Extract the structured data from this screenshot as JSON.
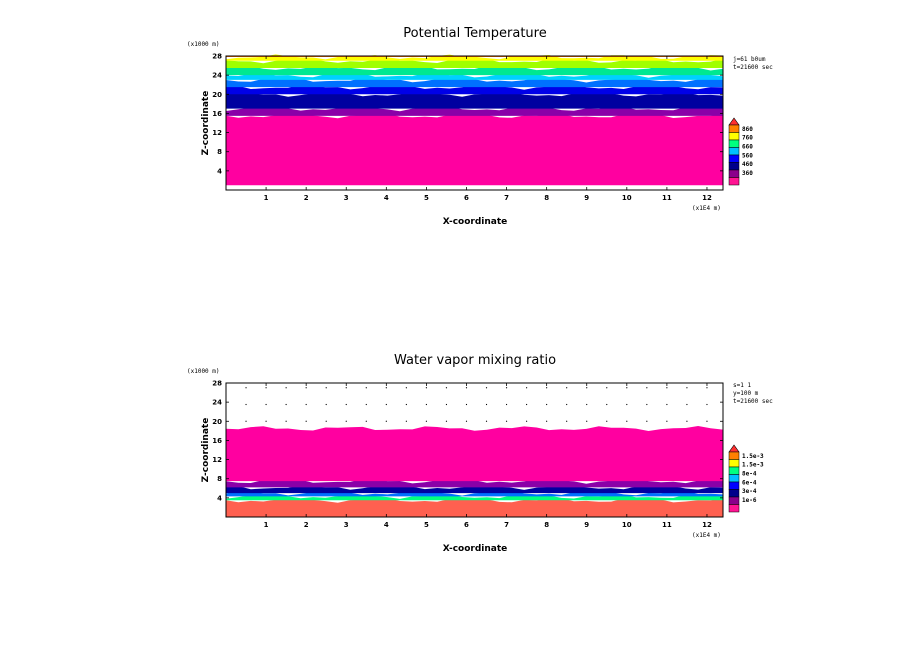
{
  "chart_data": [
    {
      "type": "heatmap",
      "title": "Potential Temperature",
      "xlabel": "X-coordinate",
      "ylabel": "Z-coordinate",
      "x_unit": "(x1E4 m)",
      "y_unit": "(x1000 m)",
      "xlim": [
        0,
        12.4
      ],
      "ylim": [
        0,
        28
      ],
      "x_ticks": [
        "1",
        "2",
        "3",
        "4",
        "5",
        "6",
        "7",
        "8",
        "9",
        "10",
        "11",
        "12"
      ],
      "y_ticks": [
        "4",
        "8",
        "12",
        "16",
        "20",
        "24",
        "28"
      ],
      "annotations": [
        "j=61 b0um",
        "t=21600 sec"
      ],
      "colorbar": {
        "labels": [
          "860",
          "760",
          "660",
          "560",
          "460",
          "360"
        ],
        "colors": [
          "#ff1493",
          "#8b008b",
          "#00008b",
          "#0000ff",
          "#00bfff",
          "#00ff80",
          "#ffff00",
          "#ff8000",
          "#ff3030"
        ],
        "extend": "max"
      },
      "layers": [
        {
          "z_bottom": 1.0,
          "z_top": 15.5,
          "color": "#ff00a0"
        },
        {
          "z_bottom": 15.5,
          "z_top": 17.0,
          "color": "#8a00a8"
        },
        {
          "z_bottom": 17.0,
          "z_top": 20.0,
          "color": "#0000a0"
        },
        {
          "z_bottom": 20.0,
          "z_top": 21.5,
          "color": "#0000e8"
        },
        {
          "z_bottom": 21.5,
          "z_top": 23.0,
          "color": "#0070ff"
        },
        {
          "z_bottom": 23.0,
          "z_top": 24.0,
          "color": "#00d0ff"
        },
        {
          "z_bottom": 24.0,
          "z_top": 25.5,
          "color": "#00e890"
        },
        {
          "z_bottom": 25.5,
          "z_top": 27.0,
          "color": "#a0ff00"
        },
        {
          "z_bottom": 27.0,
          "z_top": 27.8,
          "color": "#ffff00"
        },
        {
          "z_bottom": 27.8,
          "z_top": 28.0,
          "color": "#ff7000"
        }
      ]
    },
    {
      "type": "heatmap",
      "title": "Water vapor mixing ratio",
      "xlabel": "X-coordinate",
      "ylabel": "Z-coordinate",
      "x_unit": "(x1E4 m)",
      "y_unit": "(x1000 m)",
      "xlim": [
        0,
        12.4
      ],
      "ylim": [
        0,
        28
      ],
      "x_ticks": [
        "1",
        "2",
        "3",
        "4",
        "5",
        "6",
        "7",
        "8",
        "9",
        "10",
        "11",
        "12"
      ],
      "y_ticks": [
        "4",
        "8",
        "12",
        "16",
        "20",
        "24",
        "28"
      ],
      "annotations": [
        "s=1 1",
        "y=100 m",
        "t=21600 sec"
      ],
      "colorbar": {
        "labels": [
          "1.5e-3",
          "1.5e-3",
          "8e-4",
          "6e-4",
          "3e-4",
          "1e-6"
        ],
        "colors": [
          "#ff1493",
          "#8b008b",
          "#00008b",
          "#0000ff",
          "#00bfff",
          "#00ff80",
          "#ffff00",
          "#ff8000",
          "#ff3030"
        ],
        "extend": "max"
      },
      "layers": [
        {
          "z_bottom": 0.0,
          "z_top": 3.5,
          "color": "#ff6050"
        },
        {
          "z_bottom": 3.5,
          "z_top": 4.3,
          "color": "#00ff80"
        },
        {
          "z_bottom": 4.3,
          "z_top": 5.0,
          "color": "#0070ff"
        },
        {
          "z_bottom": 5.0,
          "z_top": 6.2,
          "color": "#0000a0"
        },
        {
          "z_bottom": 6.2,
          "z_top": 7.5,
          "color": "#8a00a8"
        },
        {
          "z_bottom": 7.5,
          "z_top": 18.5,
          "color": "#ff00a0"
        }
      ]
    }
  ]
}
